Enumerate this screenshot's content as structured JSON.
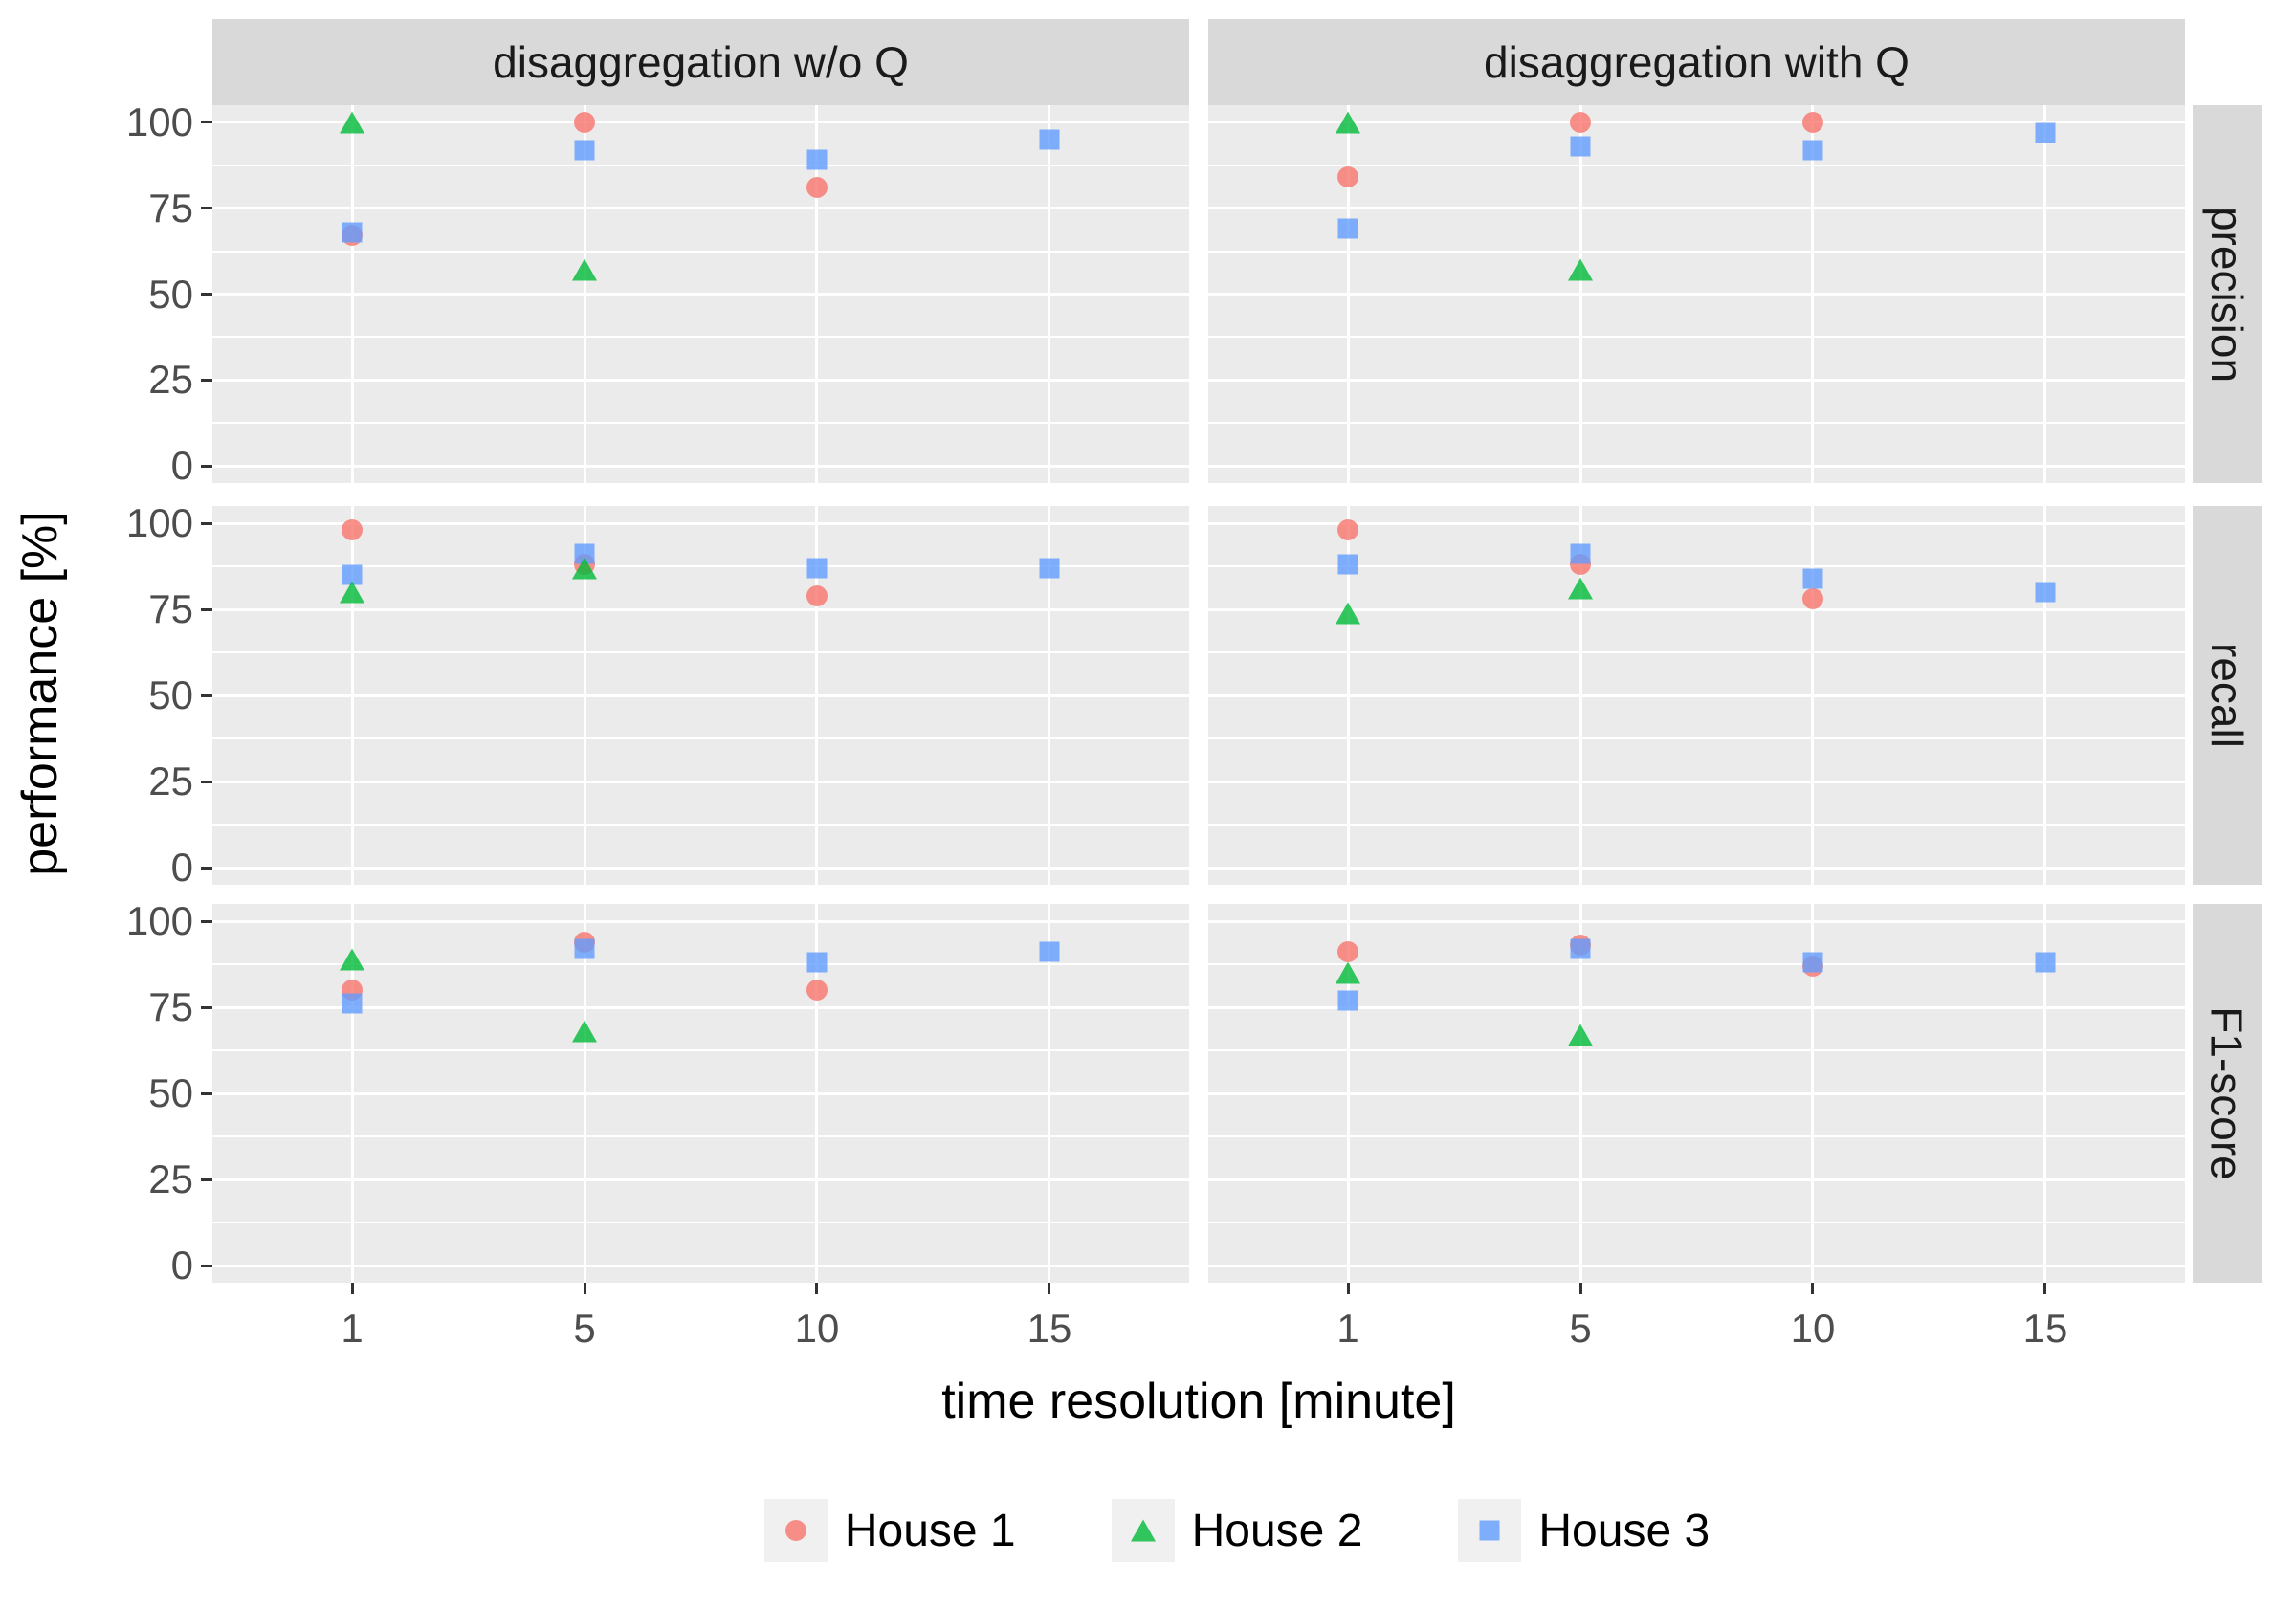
{
  "chart_data": {
    "type": "scatter",
    "facet_cols": [
      "disaggregation w/o Q",
      "disaggregation with Q"
    ],
    "facet_rows": [
      "precision",
      "recall",
      "F1-score"
    ],
    "xlabel": "time resolution [minute]",
    "ylabel": "performance [%]",
    "x_categories": [
      "1",
      "5",
      "10",
      "15"
    ],
    "y_ticks": [
      100,
      75,
      50,
      25,
      0
    ],
    "ylim": [
      -5,
      105
    ],
    "grid": {
      "panel_bg": "#EBEBEB",
      "strip_bg": "#D9D9D9",
      "gridline_color": "#FFFFFF",
      "tick_label_color": "#4D4D4D"
    },
    "series": [
      {
        "name": "House 1",
        "shape": "circle",
        "color": "#F8766D"
      },
      {
        "name": "House 2",
        "shape": "triangle",
        "color": "#00BA38"
      },
      {
        "name": "House 3",
        "shape": "square",
        "color": "#619CFF"
      }
    ],
    "marker_opacity": 0.8,
    "panels": [
      {
        "col": "disaggregation w/o Q",
        "row": "precision",
        "points": [
          {
            "series": "House 1",
            "x": "1",
            "y": 67
          },
          {
            "series": "House 1",
            "x": "5",
            "y": 100
          },
          {
            "series": "House 1",
            "x": "10",
            "y": 81
          },
          {
            "series": "House 3",
            "x": "1",
            "y": 68
          },
          {
            "series": "House 3",
            "x": "5",
            "y": 92
          },
          {
            "series": "House 3",
            "x": "10",
            "y": 89
          },
          {
            "series": "House 3",
            "x": "15",
            "y": 95
          },
          {
            "series": "House 2",
            "x": "1",
            "y": 100
          },
          {
            "series": "House 2",
            "x": "5",
            "y": 57
          }
        ]
      },
      {
        "col": "disaggregation with Q",
        "row": "precision",
        "points": [
          {
            "series": "House 1",
            "x": "1",
            "y": 84
          },
          {
            "series": "House 1",
            "x": "5",
            "y": 100
          },
          {
            "series": "House 1",
            "x": "10",
            "y": 100
          },
          {
            "series": "House 3",
            "x": "1",
            "y": 69
          },
          {
            "series": "House 3",
            "x": "5",
            "y": 93
          },
          {
            "series": "House 3",
            "x": "10",
            "y": 92
          },
          {
            "series": "House 3",
            "x": "15",
            "y": 97
          },
          {
            "series": "House 2",
            "x": "1",
            "y": 100
          },
          {
            "series": "House 2",
            "x": "5",
            "y": 57
          }
        ]
      },
      {
        "col": "disaggregation w/o Q",
        "row": "recall",
        "points": [
          {
            "series": "House 1",
            "x": "1",
            "y": 98
          },
          {
            "series": "House 1",
            "x": "5",
            "y": 88
          },
          {
            "series": "House 1",
            "x": "10",
            "y": 79
          },
          {
            "series": "House 3",
            "x": "1",
            "y": 85
          },
          {
            "series": "House 3",
            "x": "5",
            "y": 91
          },
          {
            "series": "House 3",
            "x": "10",
            "y": 87
          },
          {
            "series": "House 3",
            "x": "15",
            "y": 87
          },
          {
            "series": "House 2",
            "x": "1",
            "y": 80
          },
          {
            "series": "House 2",
            "x": "5",
            "y": 87
          }
        ]
      },
      {
        "col": "disaggregation with Q",
        "row": "recall",
        "points": [
          {
            "series": "House 1",
            "x": "1",
            "y": 98
          },
          {
            "series": "House 1",
            "x": "5",
            "y": 88
          },
          {
            "series": "House 1",
            "x": "10",
            "y": 78
          },
          {
            "series": "House 3",
            "x": "1",
            "y": 88
          },
          {
            "series": "House 3",
            "x": "5",
            "y": 91
          },
          {
            "series": "House 3",
            "x": "10",
            "y": 84
          },
          {
            "series": "House 3",
            "x": "15",
            "y": 80
          },
          {
            "series": "House 2",
            "x": "1",
            "y": 74
          },
          {
            "series": "House 2",
            "x": "5",
            "y": 81
          }
        ]
      },
      {
        "col": "disaggregation w/o Q",
        "row": "F1-score",
        "points": [
          {
            "series": "House 1",
            "x": "1",
            "y": 80
          },
          {
            "series": "House 1",
            "x": "5",
            "y": 94
          },
          {
            "series": "House 1",
            "x": "10",
            "y": 80
          },
          {
            "series": "House 3",
            "x": "1",
            "y": 76
          },
          {
            "series": "House 3",
            "x": "5",
            "y": 92
          },
          {
            "series": "House 3",
            "x": "10",
            "y": 88
          },
          {
            "series": "House 3",
            "x": "15",
            "y": 91
          },
          {
            "series": "House 2",
            "x": "1",
            "y": 89
          },
          {
            "series": "House 2",
            "x": "5",
            "y": 68
          }
        ]
      },
      {
        "col": "disaggregation with Q",
        "row": "F1-score",
        "points": [
          {
            "series": "House 1",
            "x": "1",
            "y": 91
          },
          {
            "series": "House 1",
            "x": "5",
            "y": 93
          },
          {
            "series": "House 1",
            "x": "10",
            "y": 87
          },
          {
            "series": "House 3",
            "x": "1",
            "y": 77
          },
          {
            "series": "House 3",
            "x": "5",
            "y": 92
          },
          {
            "series": "House 3",
            "x": "10",
            "y": 88
          },
          {
            "series": "House 3",
            "x": "15",
            "y": 88
          },
          {
            "series": "House 2",
            "x": "1",
            "y": 85
          },
          {
            "series": "House 2",
            "x": "5",
            "y": 67
          }
        ]
      }
    ],
    "legend": {
      "position": "bottom",
      "items": [
        "House 1",
        "House 2",
        "House 3"
      ]
    }
  }
}
